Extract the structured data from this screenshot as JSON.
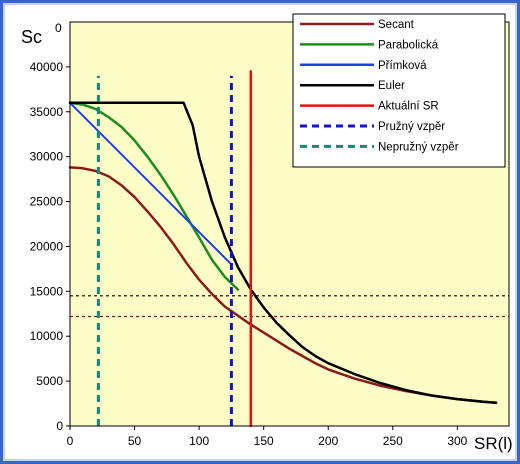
{
  "colors": {
    "outer_border": "#3a66cc",
    "panel_bg": "#ffffff",
    "plot_bg": "#fdfdc8",
    "frame": "#000000"
  },
  "chart_data": {
    "type": "line",
    "ylabel": "Sc",
    "xlabel": "SR(l)",
    "xlim": [
      0,
      340
    ],
    "ylim": [
      0,
      45000
    ],
    "x_ticks": [
      0,
      50,
      100,
      150,
      200,
      250,
      300
    ],
    "y_ticks": [
      0,
      5000,
      10000,
      15000,
      20000,
      25000,
      30000,
      35000,
      40000
    ],
    "y_tick_labels": [
      "0",
      "5000",
      "10000",
      "15000",
      "20000",
      "25000",
      "30000",
      "35000",
      "40000"
    ],
    "x_tick_labels": [
      "0",
      "50",
      "100",
      "150",
      "200",
      "250",
      "300"
    ],
    "top_y_label": "0",
    "legend_position": "top-right",
    "series": [
      {
        "name": "Secant",
        "color": "#8b1a1a",
        "dash": "solid",
        "width": 2.5,
        "points": [
          [
            0,
            28800
          ],
          [
            10,
            28700
          ],
          [
            20,
            28400
          ],
          [
            30,
            27800
          ],
          [
            40,
            26800
          ],
          [
            50,
            25500
          ],
          [
            60,
            23900
          ],
          [
            70,
            22200
          ],
          [
            80,
            20300
          ],
          [
            90,
            18200
          ],
          [
            100,
            16300
          ],
          [
            110,
            14700
          ],
          [
            120,
            13300
          ],
          [
            130,
            12300
          ],
          [
            140,
            11300
          ],
          [
            150,
            10400
          ],
          [
            160,
            9500
          ],
          [
            170,
            8600
          ],
          [
            180,
            7800
          ],
          [
            190,
            7000
          ],
          [
            200,
            6300
          ],
          [
            220,
            5300
          ],
          [
            240,
            4500
          ],
          [
            260,
            3900
          ],
          [
            280,
            3400
          ],
          [
            300,
            3000
          ],
          [
            320,
            2700
          ],
          [
            330,
            2600
          ]
        ]
      },
      {
        "name": "Parabolická",
        "color": "#1e8c1e",
        "dash": "solid",
        "width": 2.5,
        "points": [
          [
            0,
            36000
          ],
          [
            10,
            35800
          ],
          [
            20,
            35300
          ],
          [
            30,
            34400
          ],
          [
            40,
            33300
          ],
          [
            50,
            31800
          ],
          [
            60,
            30000
          ],
          [
            70,
            28000
          ],
          [
            80,
            25800
          ],
          [
            90,
            23400
          ],
          [
            100,
            21000
          ],
          [
            110,
            18500
          ],
          [
            120,
            16600
          ],
          [
            130,
            15200
          ]
        ]
      },
      {
        "name": "Přímková",
        "color": "#1f3fe6",
        "dash": "solid",
        "width": 2,
        "points": [
          [
            0,
            36000
          ],
          [
            125,
            18000
          ]
        ]
      },
      {
        "name": "Euler",
        "color": "#000000",
        "dash": "solid",
        "width": 2.5,
        "points": [
          [
            0,
            36000
          ],
          [
            88,
            36000
          ],
          [
            95,
            33500
          ],
          [
            100,
            30000
          ],
          [
            110,
            25000
          ],
          [
            120,
            21000
          ],
          [
            130,
            17700
          ],
          [
            140,
            15200
          ],
          [
            150,
            13200
          ],
          [
            160,
            11500
          ],
          [
            170,
            10100
          ],
          [
            180,
            8800
          ],
          [
            190,
            7800
          ],
          [
            200,
            7000
          ],
          [
            220,
            5800
          ],
          [
            240,
            4800
          ],
          [
            260,
            4000
          ],
          [
            280,
            3400
          ],
          [
            300,
            3000
          ],
          [
            320,
            2700
          ],
          [
            330,
            2600
          ]
        ]
      },
      {
        "name": "Aktuální SR",
        "color": "#e01010",
        "dash": "solid",
        "width": 2.5,
        "points": [
          [
            140,
            0
          ],
          [
            140,
            39500
          ]
        ]
      },
      {
        "name": "Pružný vzpěr",
        "color": "#1010d8",
        "dash": "dashed",
        "width": 3,
        "points": [
          [
            125,
            0
          ],
          [
            125,
            39000
          ]
        ]
      },
      {
        "name": "Nepružný vzpěr",
        "color": "#168a7a",
        "dash": "dashed",
        "width": 3,
        "points": [
          [
            22,
            0
          ],
          [
            22,
            39000
          ]
        ]
      }
    ],
    "reference_lines": [
      {
        "color": "#000000",
        "y": 14500,
        "x": [
          0,
          340
        ]
      },
      {
        "color": "#8b1a1a",
        "y": 12200,
        "x": [
          0,
          340
        ]
      }
    ]
  }
}
